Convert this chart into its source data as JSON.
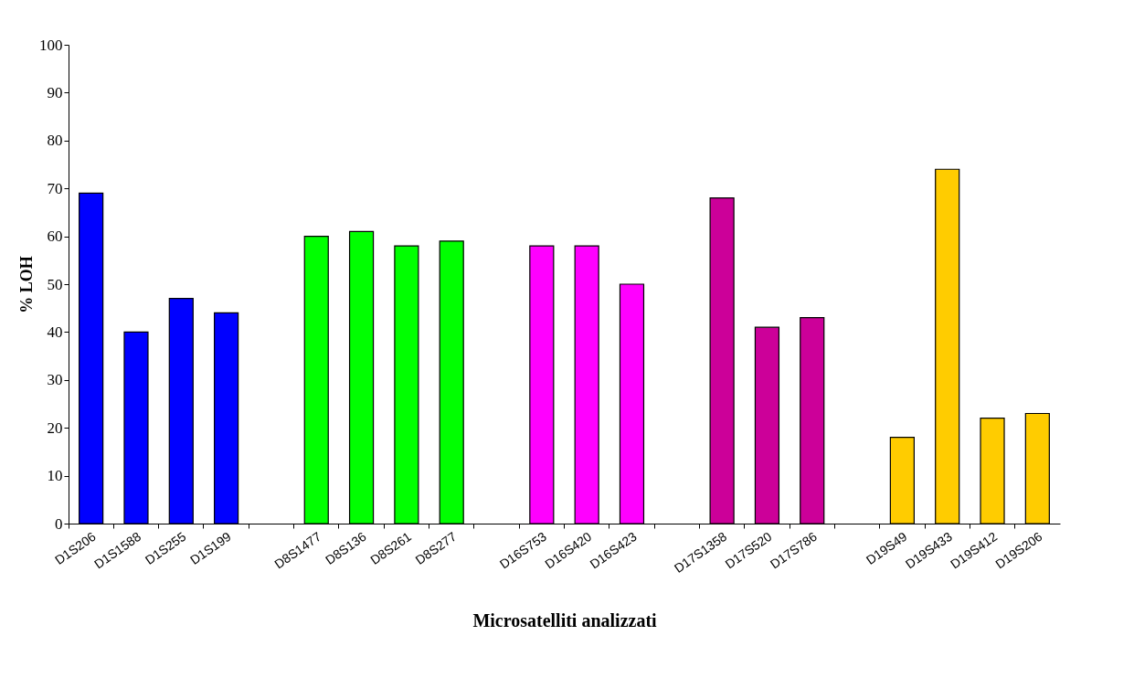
{
  "chart_data": {
    "type": "bar",
    "xlabel": "Microsatelliti analizzati",
    "ylabel": "% LOH",
    "categories": [
      "D1S206",
      "D1S1588",
      "D1S255",
      "D1S199",
      null,
      "D8S1477",
      "D8S136",
      "D8S261",
      "D8S277",
      null,
      "D16S753",
      "D16S420",
      "D16S423",
      null,
      "D17S1358",
      "D17S520",
      "D17S786",
      null,
      "D19S49",
      "D19S433",
      "D19S412",
      "D19S206"
    ],
    "values": [
      69,
      40,
      47,
      44,
      null,
      60,
      61,
      58,
      59,
      null,
      58,
      58,
      50,
      null,
      68,
      41,
      43,
      null,
      18,
      74,
      22,
      23
    ],
    "colors": [
      "#0000ff",
      "#0000ff",
      "#0000ff",
      "#0000ff",
      null,
      "#00ff00",
      "#00ff00",
      "#00ff00",
      "#00ff00",
      null,
      "#ff00ff",
      "#ff00ff",
      "#ff00ff",
      null,
      "#cc0099",
      "#cc0099",
      "#cc0099",
      null,
      "#ffcc00",
      "#ffcc00",
      "#ffcc00",
      "#ffcc00"
    ],
    "ylim": [
      0,
      100
    ],
    "yticks": [
      0,
      10,
      20,
      30,
      40,
      50,
      60,
      70,
      80,
      90,
      100
    ],
    "grid": false
  }
}
